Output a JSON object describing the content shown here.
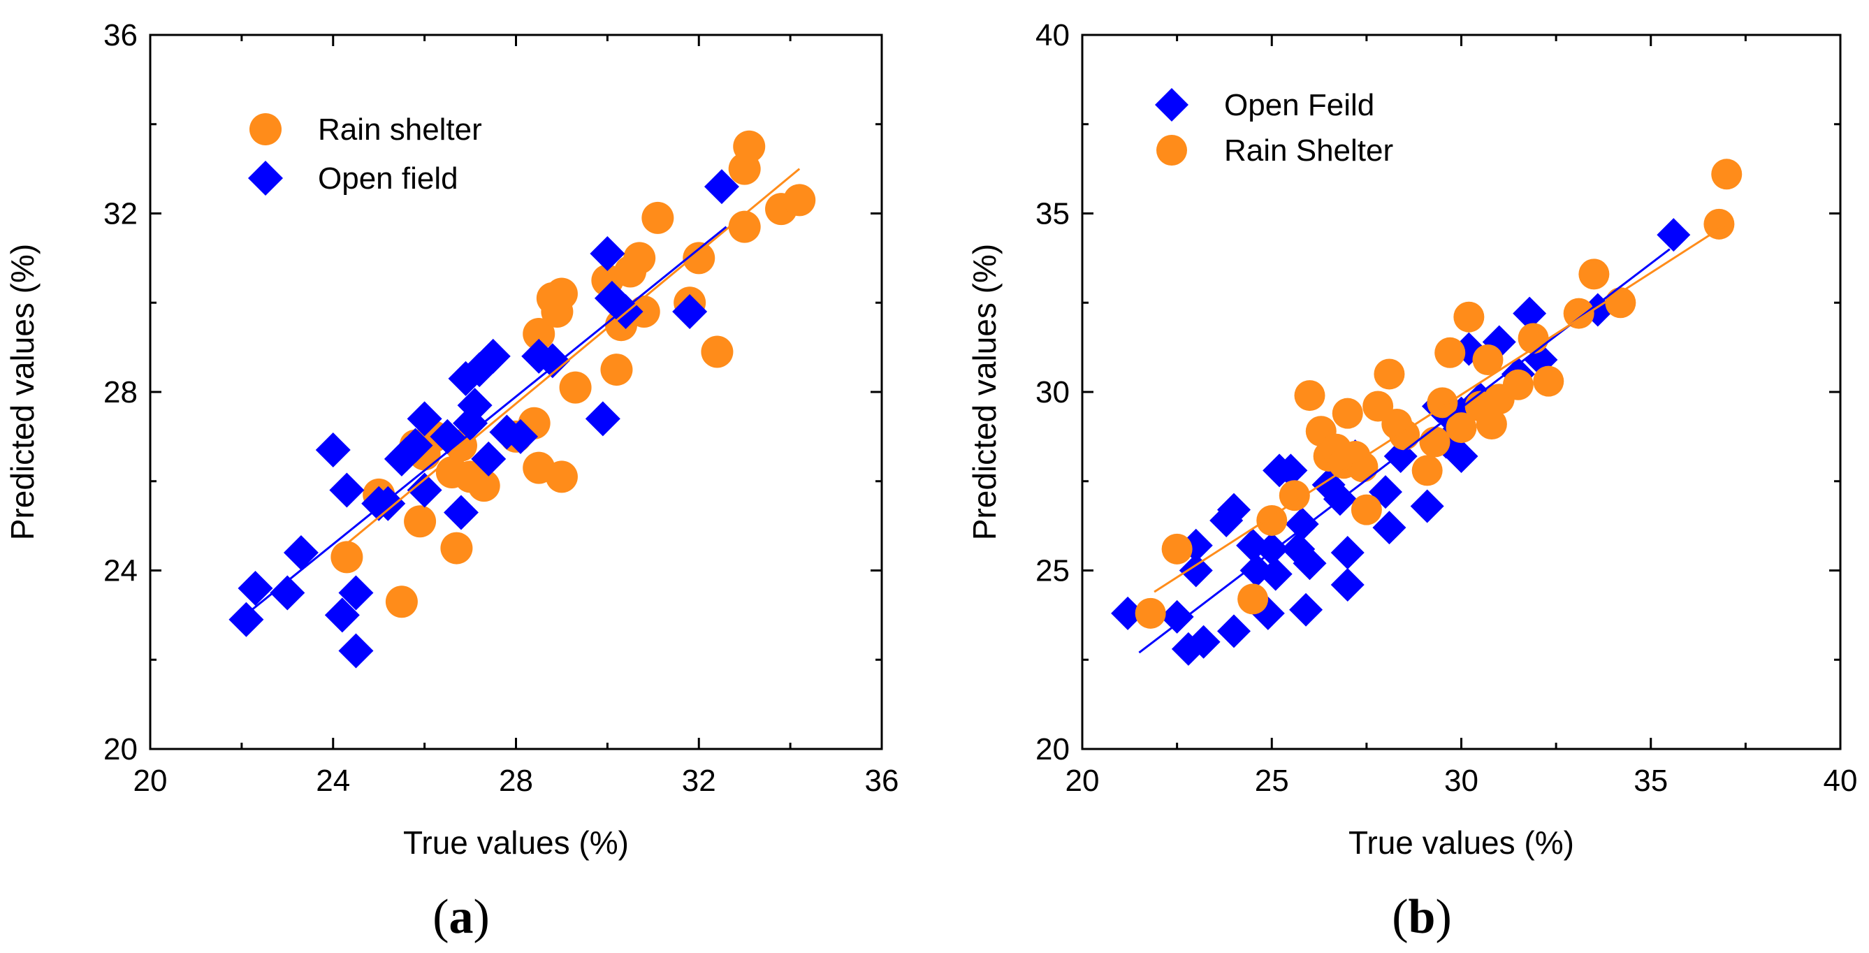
{
  "figure": {
    "panel_a_caption": {
      "open": "(",
      "letter": "a",
      "close": ")"
    },
    "panel_b_caption": {
      "open": "(",
      "letter": "b",
      "close": ")"
    }
  },
  "chart_data": [
    {
      "id": "a",
      "type": "scatter",
      "xlabel": "True values (%)",
      "ylabel": "Predicted  values (%)",
      "xlim": [
        20,
        36
      ],
      "ylim": [
        20,
        36
      ],
      "xticks": [
        20,
        24,
        28,
        32,
        36
      ],
      "yticks": [
        20,
        24,
        28,
        32,
        36
      ],
      "grid": false,
      "legend_position": "top-left",
      "series": [
        {
          "name": "Rain shelter",
          "marker": "circle",
          "color": "#ff8c1a",
          "fit": [
            [
              24.3,
              24.6
            ],
            [
              34.2,
              33.0
            ]
          ],
          "points": [
            [
              24.3,
              24.3
            ],
            [
              25.0,
              25.7
            ],
            [
              25.5,
              23.3
            ],
            [
              25.8,
              26.8
            ],
            [
              25.9,
              25.1
            ],
            [
              26.0,
              26.6
            ],
            [
              26.2,
              27.0
            ],
            [
              26.6,
              26.2
            ],
            [
              26.7,
              24.5
            ],
            [
              26.8,
              26.8
            ],
            [
              27.0,
              26.1
            ],
            [
              27.3,
              25.9
            ],
            [
              28.0,
              27.0
            ],
            [
              28.4,
              27.3
            ],
            [
              28.5,
              29.3
            ],
            [
              28.5,
              26.3
            ],
            [
              28.8,
              30.1
            ],
            [
              28.9,
              29.8
            ],
            [
              29.0,
              30.2
            ],
            [
              29.0,
              26.1
            ],
            [
              29.3,
              28.1
            ],
            [
              30.0,
              30.5
            ],
            [
              30.2,
              28.5
            ],
            [
              30.3,
              29.5
            ],
            [
              30.5,
              30.7
            ],
            [
              30.7,
              31.0
            ],
            [
              30.8,
              29.8
            ],
            [
              31.1,
              31.9
            ],
            [
              31.8,
              30.0
            ],
            [
              32.0,
              31.0
            ],
            [
              32.4,
              28.9
            ],
            [
              33.0,
              33.0
            ],
            [
              33.0,
              31.7
            ],
            [
              33.1,
              33.5
            ],
            [
              33.8,
              32.1
            ],
            [
              34.2,
              32.3
            ]
          ]
        },
        {
          "name": "Open field",
          "marker": "diamond",
          "color": "#0000ff",
          "fit": [
            [
              22.2,
              23.1
            ],
            [
              32.6,
              31.7
            ]
          ],
          "points": [
            [
              22.1,
              22.9
            ],
            [
              22.3,
              23.6
            ],
            [
              23.0,
              23.5
            ],
            [
              23.3,
              24.4
            ],
            [
              24.0,
              26.7
            ],
            [
              24.2,
              23.0
            ],
            [
              24.3,
              25.8
            ],
            [
              24.5,
              23.5
            ],
            [
              24.5,
              22.2
            ],
            [
              25.0,
              25.5
            ],
            [
              25.2,
              25.5
            ],
            [
              25.5,
              26.5
            ],
            [
              25.6,
              26.6
            ],
            [
              25.8,
              26.8
            ],
            [
              26.0,
              27.4
            ],
            [
              26.0,
              25.8
            ],
            [
              26.5,
              27.0
            ],
            [
              26.8,
              25.3
            ],
            [
              26.9,
              28.3
            ],
            [
              27.0,
              27.3
            ],
            [
              27.1,
              27.7
            ],
            [
              27.2,
              28.5
            ],
            [
              27.4,
              26.5
            ],
            [
              27.5,
              28.8
            ],
            [
              27.8,
              27.1
            ],
            [
              28.1,
              27.0
            ],
            [
              28.5,
              28.8
            ],
            [
              28.8,
              28.7
            ],
            [
              29.9,
              27.4
            ],
            [
              30.0,
              31.1
            ],
            [
              30.1,
              30.1
            ],
            [
              30.4,
              29.8
            ],
            [
              31.8,
              29.8
            ],
            [
              32.5,
              32.6
            ]
          ]
        }
      ]
    },
    {
      "id": "b",
      "type": "scatter",
      "xlabel": "True values (%)",
      "ylabel": "Predicted  values (%)",
      "xlim": [
        20,
        40
      ],
      "ylim": [
        20,
        40
      ],
      "xticks": [
        20,
        25,
        30,
        35,
        40
      ],
      "yticks": [
        20,
        25,
        30,
        35,
        40
      ],
      "grid": false,
      "legend_position": "top-left",
      "series": [
        {
          "name": "Open Feild",
          "marker": "diamond",
          "color": "#0000ff",
          "fit": [
            [
              21.5,
              22.7
            ],
            [
              35.5,
              34.0
            ]
          ],
          "points": [
            [
              21.2,
              23.8
            ],
            [
              22.5,
              23.7
            ],
            [
              22.8,
              22.8
            ],
            [
              23.0,
              25.7
            ],
            [
              23.0,
              25.0
            ],
            [
              23.2,
              23.0
            ],
            [
              23.8,
              26.4
            ],
            [
              24.0,
              23.3
            ],
            [
              24.0,
              26.7
            ],
            [
              24.5,
              25.7
            ],
            [
              24.6,
              25.0
            ],
            [
              24.9,
              23.8
            ],
            [
              25.0,
              25.6
            ],
            [
              25.1,
              24.9
            ],
            [
              25.2,
              27.8
            ],
            [
              25.5,
              27.8
            ],
            [
              25.7,
              25.6
            ],
            [
              25.8,
              26.3
            ],
            [
              25.9,
              23.9
            ],
            [
              26.0,
              25.2
            ],
            [
              26.5,
              27.4
            ],
            [
              26.8,
              27.0
            ],
            [
              27.0,
              25.5
            ],
            [
              27.0,
              24.6
            ],
            [
              27.2,
              28.2
            ],
            [
              28.0,
              27.2
            ],
            [
              28.1,
              26.2
            ],
            [
              28.4,
              28.2
            ],
            [
              29.1,
              26.8
            ],
            [
              29.4,
              29.6
            ],
            [
              29.6,
              28.6
            ],
            [
              29.8,
              29.2
            ],
            [
              30.0,
              29.4
            ],
            [
              30.0,
              28.2
            ],
            [
              30.2,
              31.2
            ],
            [
              30.5,
              29.8
            ],
            [
              31.0,
              31.4
            ],
            [
              31.5,
              30.5
            ],
            [
              31.8,
              32.2
            ],
            [
              32.1,
              30.9
            ],
            [
              33.6,
              32.3
            ],
            [
              35.6,
              34.4
            ]
          ]
        },
        {
          "name": "Rain Shelter",
          "marker": "circle",
          "color": "#ff8c1a",
          "fit": [
            [
              21.9,
              24.4
            ],
            [
              37.0,
              34.7
            ]
          ],
          "points": [
            [
              21.8,
              23.8
            ],
            [
              22.5,
              25.6
            ],
            [
              24.5,
              24.2
            ],
            [
              25.0,
              26.4
            ],
            [
              25.6,
              27.1
            ],
            [
              26.0,
              29.9
            ],
            [
              26.3,
              28.9
            ],
            [
              26.5,
              28.2
            ],
            [
              26.7,
              28.4
            ],
            [
              26.9,
              28.0
            ],
            [
              27.0,
              29.4
            ],
            [
              27.2,
              28.2
            ],
            [
              27.4,
              27.9
            ],
            [
              27.5,
              26.7
            ],
            [
              27.8,
              29.6
            ],
            [
              28.1,
              30.5
            ],
            [
              28.3,
              29.1
            ],
            [
              28.5,
              28.8
            ],
            [
              29.1,
              27.8
            ],
            [
              29.3,
              28.6
            ],
            [
              29.5,
              29.7
            ],
            [
              29.7,
              31.1
            ],
            [
              30.0,
              29.0
            ],
            [
              30.2,
              32.1
            ],
            [
              30.5,
              29.6
            ],
            [
              30.7,
              30.9
            ],
            [
              30.8,
              29.1
            ],
            [
              31.0,
              29.8
            ],
            [
              31.5,
              30.2
            ],
            [
              31.9,
              31.5
            ],
            [
              32.3,
              30.3
            ],
            [
              33.1,
              32.2
            ],
            [
              33.5,
              33.3
            ],
            [
              34.2,
              32.5
            ],
            [
              36.8,
              34.7
            ],
            [
              37.0,
              36.1
            ]
          ]
        }
      ]
    }
  ]
}
